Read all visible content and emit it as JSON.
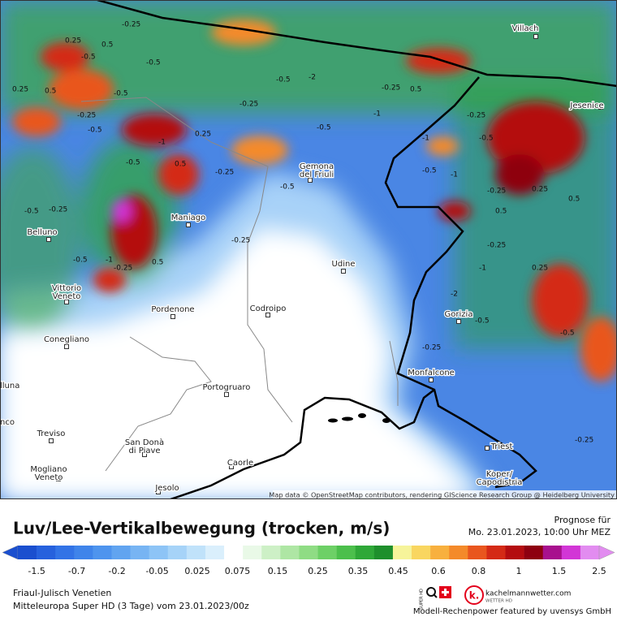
{
  "map": {
    "attribution": "Map data © OpenStreetMap contributors, rendering GIScience Research Group @ Heidelberg University",
    "places": [
      {
        "lines": [
          "Villach"
        ]
      },
      {
        "lines": [
          "Jesenice"
        ]
      },
      {
        "lines": [
          "Gemona",
          "del Friuli"
        ]
      },
      {
        "lines": [
          "Maniago"
        ]
      },
      {
        "lines": [
          "Belluno"
        ]
      },
      {
        "lines": [
          "Udine"
        ]
      },
      {
        "lines": [
          "Vittorio",
          "Veneto"
        ]
      },
      {
        "lines": [
          "Pordenone"
        ]
      },
      {
        "lines": [
          "Codroipo"
        ]
      },
      {
        "lines": [
          "Gorizia"
        ]
      },
      {
        "lines": [
          "Conegliano"
        ]
      },
      {
        "lines": [
          "Monfalcone"
        ]
      },
      {
        "lines": [
          "Portogruaro"
        ]
      },
      {
        "lines": [
          "lluna"
        ]
      },
      {
        "lines": [
          "nco"
        ]
      },
      {
        "lines": [
          "Treviso"
        ]
      },
      {
        "lines": [
          "San Donà",
          "di Piave"
        ]
      },
      {
        "lines": [
          "Triest"
        ]
      },
      {
        "lines": [
          "Caorle"
        ]
      },
      {
        "lines": [
          "Mogliano",
          "Veneto"
        ]
      },
      {
        "lines": [
          "Jesolo"
        ]
      },
      {
        "lines": [
          "Koper/",
          "Capodistria"
        ]
      }
    ],
    "contour_labels": [
      "0.25",
      "0.5",
      "-0.25",
      "-0.5",
      "-0.5",
      "0.25",
      "0.5",
      "-0.5",
      "-0.25",
      "-0.5",
      "-1",
      "0.25",
      "-0.5",
      "0.5",
      "-0.25",
      "-0.5",
      "-0.5",
      "-0.25",
      "-1",
      "-0.5",
      "-0.25",
      "0.5",
      "-0.25",
      "-2",
      "-1",
      "-0.5",
      "-0.25",
      "-0.5",
      "-0.25",
      "0.5",
      "-1",
      "-0.5",
      "-0.25",
      "-0.5",
      "-1",
      "-0.25",
      "0.5",
      "0.25",
      "-1",
      "-0.25",
      "-2",
      "-0.5",
      "-0.25",
      "0.25",
      "0.5",
      "-0.25",
      "-0.5"
    ]
  },
  "legend": {
    "title": "Luv/Lee-Vertikalbewegung (trocken, m/s)",
    "forecast_label": "Prognose für",
    "forecast_time": "Mo. 23.01.2023, 10:00 Uhr MEZ",
    "ticks": [
      -1.5,
      -0.7,
      -0.2,
      -0.05,
      0.025,
      0.075,
      0.15,
      0.25,
      0.35,
      0.45,
      0.6,
      0.8,
      1,
      1.5,
      2.5
    ],
    "colors": [
      "#1a4fcf",
      "#2661dd",
      "#3273e6",
      "#3f84ea",
      "#4e94ee",
      "#61a4f0",
      "#77b4f3",
      "#8dc4f6",
      "#a6d3f8",
      "#c0e2fa",
      "#daeffc",
      "#ffffff",
      "#e9f9e7",
      "#cdf0c6",
      "#aee6a4",
      "#8fdc84",
      "#6dd066",
      "#4cbf4c",
      "#2fa838",
      "#1e8f2c",
      "#f6f49a",
      "#f9d660",
      "#f8b03e",
      "#f48a2a",
      "#e9561e",
      "#d42a16",
      "#b40c10",
      "#8e0010",
      "#a8108e",
      "#d236d6",
      "#e28cf0"
    ]
  },
  "footer": {
    "region": "Friaul-Julisch Venetien",
    "model": "Mitteleuropa Super HD (3 Tage) vom  23.01.2023/00z",
    "super": "SUPER HD",
    "logo": "k.",
    "brand": "kachelmannwetter.com",
    "brand_sub": "WETTER HD",
    "credit": "Modell-Rechenpower featured by uvensys GmbH"
  }
}
